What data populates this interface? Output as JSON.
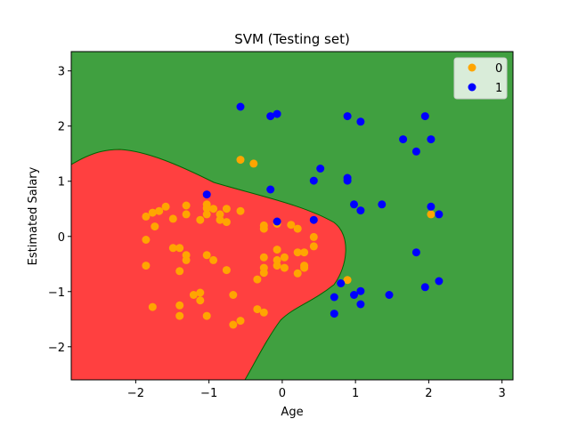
{
  "chart_data": {
    "type": "scatter",
    "title": "SVM (Testing set)",
    "xlabel": "Age",
    "ylabel": "Estimated Salary",
    "xlim": [
      -2.88,
      3.15
    ],
    "ylim": [
      -2.6,
      3.35
    ],
    "xticks": [
      -2,
      -1,
      0,
      1,
      2,
      3
    ],
    "yticks": [
      -2,
      -1,
      0,
      1,
      2,
      3
    ],
    "xtick_labels": [
      "−2",
      "−1",
      "0",
      "1",
      "2",
      "3"
    ],
    "ytick_labels": [
      "−2",
      "−1",
      "0",
      "1",
      "2",
      "3"
    ],
    "grid": false,
    "legend_position": "top-right",
    "background_regions": {
      "class_0_color": "#ff4040",
      "class_1_color": "#40a040",
      "boundary_color": "#006400"
    },
    "series": [
      {
        "name": "0",
        "color": "#ffa500",
        "points": [
          [
            -1.86,
            0.36
          ],
          [
            -1.77,
            0.43
          ],
          [
            -1.68,
            0.46
          ],
          [
            -1.59,
            0.54
          ],
          [
            -1.74,
            0.18
          ],
          [
            -1.86,
            -0.06
          ],
          [
            -1.86,
            -0.53
          ],
          [
            -1.77,
            -1.28
          ],
          [
            -1.49,
            0.32
          ],
          [
            -1.31,
            0.56
          ],
          [
            -1.31,
            0.4
          ],
          [
            -1.49,
            -0.21
          ],
          [
            -1.4,
            -0.21
          ],
          [
            -1.31,
            -0.34
          ],
          [
            -1.31,
            -0.43
          ],
          [
            -1.4,
            -0.63
          ],
          [
            -1.21,
            -1.06
          ],
          [
            -1.12,
            -1.02
          ],
          [
            -1.12,
            -1.16
          ],
          [
            -1.4,
            -1.25
          ],
          [
            -1.4,
            -1.44
          ],
          [
            -1.12,
            0.3
          ],
          [
            -1.03,
            0.58
          ],
          [
            -1.03,
            0.51
          ],
          [
            -1.03,
            0.4
          ],
          [
            -0.94,
            0.5
          ],
          [
            -0.85,
            0.4
          ],
          [
            -0.85,
            0.3
          ],
          [
            -0.76,
            0.5
          ],
          [
            -0.76,
            0.26
          ],
          [
            -1.03,
            -0.34
          ],
          [
            -0.94,
            -0.43
          ],
          [
            -0.76,
            -0.61
          ],
          [
            -0.67,
            -1.06
          ],
          [
            -1.03,
            -1.44
          ],
          [
            -0.67,
            -1.6
          ],
          [
            -0.57,
            -1.53
          ],
          [
            -0.57,
            0.46
          ],
          [
            -0.57,
            1.39
          ],
          [
            -0.39,
            1.32
          ],
          [
            -0.25,
            0.2
          ],
          [
            -0.25,
            0.14
          ],
          [
            -0.25,
            -0.38
          ],
          [
            -0.25,
            -0.57
          ],
          [
            -0.25,
            -0.66
          ],
          [
            -0.25,
            -1.38
          ],
          [
            -0.34,
            -1.32
          ],
          [
            -0.34,
            -0.78
          ],
          [
            -0.07,
            0.23
          ],
          [
            -0.07,
            -0.24
          ],
          [
            -0.07,
            -0.43
          ],
          [
            -0.07,
            -0.53
          ],
          [
            0.03,
            -0.57
          ],
          [
            0.03,
            -0.38
          ],
          [
            0.12,
            0.21
          ],
          [
            0.21,
            0.14
          ],
          [
            0.21,
            -0.29
          ],
          [
            0.21,
            -0.67
          ],
          [
            0.3,
            -0.29
          ],
          [
            0.3,
            -0.53
          ],
          [
            0.3,
            -0.57
          ],
          [
            0.43,
            -0.01
          ],
          [
            0.43,
            -0.18
          ],
          [
            0.89,
            -0.79
          ],
          [
            2.03,
            0.4
          ]
        ]
      },
      {
        "name": "1",
        "color": "#0000ff",
        "points": [
          [
            -0.57,
            2.35
          ],
          [
            -0.16,
            2.18
          ],
          [
            -0.07,
            2.22
          ],
          [
            0.89,
            2.18
          ],
          [
            1.07,
            2.08
          ],
          [
            1.95,
            2.18
          ],
          [
            2.03,
            1.76
          ],
          [
            1.65,
            1.76
          ],
          [
            1.83,
            1.54
          ],
          [
            0.52,
            1.23
          ],
          [
            0.43,
            1.01
          ],
          [
            0.89,
            1.06
          ],
          [
            0.89,
            1.01
          ],
          [
            -0.16,
            0.85
          ],
          [
            -1.03,
            0.76
          ],
          [
            0.98,
            0.58
          ],
          [
            1.07,
            0.47
          ],
          [
            1.36,
            0.58
          ],
          [
            2.03,
            0.54
          ],
          [
            2.14,
            0.4
          ],
          [
            -0.07,
            0.27
          ],
          [
            0.43,
            0.3
          ],
          [
            1.83,
            -0.29
          ],
          [
            1.95,
            -0.92
          ],
          [
            2.14,
            -0.81
          ],
          [
            0.8,
            -0.85
          ],
          [
            0.71,
            -1.1
          ],
          [
            1.07,
            -0.99
          ],
          [
            0.98,
            -1.06
          ],
          [
            1.07,
            -1.23
          ],
          [
            1.46,
            -1.06
          ],
          [
            0.71,
            -1.4
          ]
        ]
      }
    ]
  }
}
